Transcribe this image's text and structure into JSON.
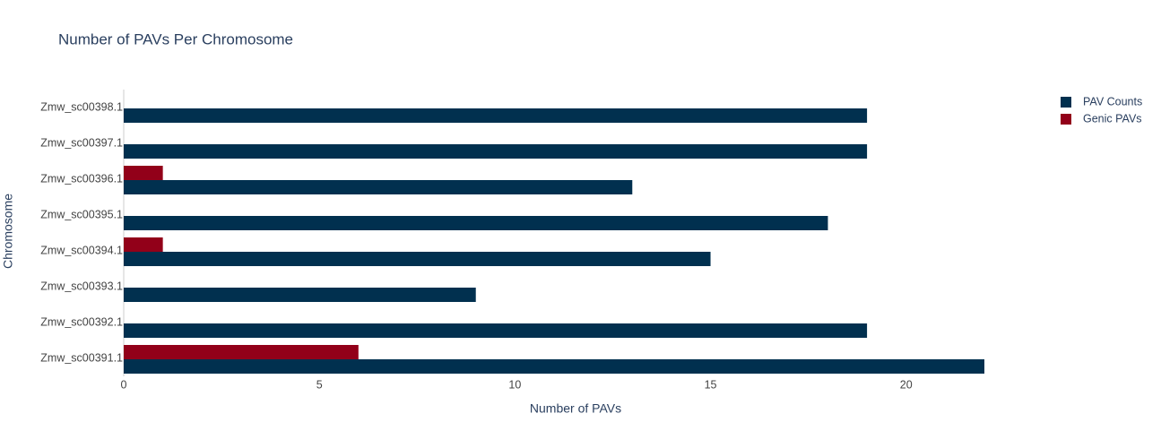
{
  "chart_data": {
    "type": "bar",
    "orientation": "horizontal",
    "title": "Number of PAVs Per Chromosome",
    "x_label": "Number of PAVs",
    "y_label": "Chromosome",
    "categories": [
      "Zmw_sc00391.1",
      "Zmw_sc00392.1",
      "Zmw_sc00393.1",
      "Zmw_sc00394.1",
      "Zmw_sc00395.1",
      "Zmw_sc00396.1",
      "Zmw_sc00397.1",
      "Zmw_sc00398.1"
    ],
    "series": [
      {
        "name": "PAV Counts",
        "color": "#01304f",
        "values": [
          22,
          19,
          9,
          15,
          18,
          13,
          19,
          19
        ]
      },
      {
        "name": "Genic PAVs",
        "color": "#920019",
        "values": [
          6,
          0,
          0,
          1,
          0,
          1,
          0,
          0
        ]
      }
    ],
    "xlim": [
      0,
      23.1
    ],
    "xticks": [
      0,
      5,
      10,
      15,
      20
    ],
    "grid": false,
    "legend": "top-right"
  }
}
